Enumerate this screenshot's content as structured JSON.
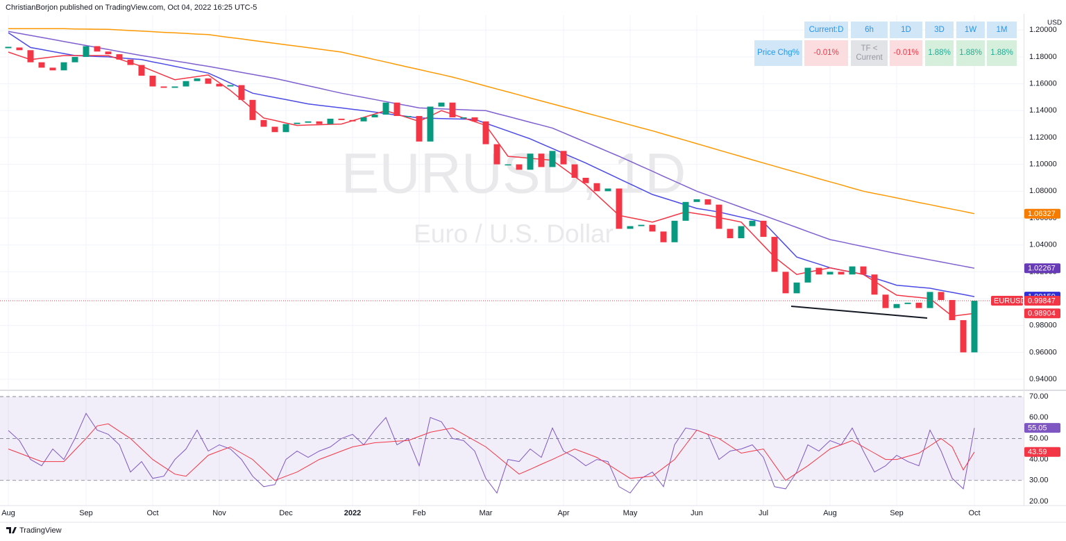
{
  "header": "ChristianBorjon published on TradingView.com, Oct 04, 2022 16:25 UTC-5",
  "footer": "TradingView",
  "table": {
    "header": [
      "Current:D",
      "6h",
      "1D",
      "3D",
      "1W",
      "1M"
    ],
    "row_label": "Price Chg%",
    "cells": [
      "-0.01%",
      "TF < Current",
      "-0.01%",
      "1.88%",
      "1.88%",
      "1.88%"
    ]
  },
  "chart_data": [
    {
      "type": "candlestick",
      "title": "EURUSD, 1D",
      "subtitle": "Euro / U.S. Dollar",
      "currency": "USD",
      "ylim": [
        0.9328,
        1.211
      ],
      "grid": true,
      "yticks": [
        {
          "value": 1.2,
          "label": "1.20000"
        },
        {
          "value": 1.18,
          "label": "1.18000"
        },
        {
          "value": 1.16,
          "label": "1.16000"
        },
        {
          "value": 1.14,
          "label": "1.14000"
        },
        {
          "value": 1.12,
          "label": "1.12000"
        },
        {
          "value": 1.1,
          "label": "1.10000"
        },
        {
          "value": 1.08,
          "label": "1.08000"
        },
        {
          "value": 1.06,
          "label": "1.06000"
        },
        {
          "value": 1.04,
          "label": "1.04000"
        },
        {
          "value": 1.02,
          "label": "1.02000"
        },
        {
          "value": 1.0,
          "label": "1.00000"
        },
        {
          "value": 0.98,
          "label": "0.98000"
        },
        {
          "value": 0.96,
          "label": "0.96000"
        },
        {
          "value": 0.94,
          "label": "0.94000"
        }
      ],
      "series": [
        {
          "name": "EURUSD",
          "up_color": "#089981",
          "down_color": "#f23645",
          "color": "#f23645",
          "values": [
            1.187,
            1.185,
            1.176,
            1.172,
            1.17,
            1.176,
            1.18,
            1.188,
            1.184,
            1.182,
            1.178,
            1.174,
            1.166,
            1.158,
            1.157,
            1.158,
            1.162,
            1.164,
            1.16,
            1.158,
            1.159,
            1.148,
            1.133,
            1.128,
            1.124,
            1.13,
            1.131,
            1.132,
            1.13,
            1.134,
            1.133,
            1.132,
            1.135,
            1.137,
            1.146,
            1.136,
            1.136,
            1.117,
            1.143,
            1.146,
            1.135,
            1.135,
            1.132,
            1.115,
            1.1,
            1.1,
            1.096,
            1.108,
            1.098,
            1.11,
            1.1,
            1.09,
            1.086,
            1.08,
            1.082,
            1.052,
            1.054,
            1.055,
            1.05,
            1.042,
            1.058,
            1.072,
            1.074,
            1.07,
            1.052,
            1.045,
            1.054,
            1.058,
            1.046,
            1.02,
            1.004,
            1.012,
            1.023,
            1.018,
            1.02,
            1.018,
            1.024,
            1.018,
            1.003,
            0.993,
            0.996,
            0.997,
            0.993,
            1.005,
            0.999,
            0.984,
            0.96,
            0.99847
          ]
        },
        {
          "color": "#ff9800",
          "badge_color": "#f57c00",
          "values": [
            1.201,
            1.201,
            1.201,
            1.201,
            1.201,
            1.201,
            1.2008,
            1.2007,
            1.2006,
            1.2005,
            1.2001,
            1.1996,
            1.1992,
            1.1988,
            1.1983,
            1.1979,
            1.1975,
            1.197,
            1.1966,
            1.1955,
            1.1944,
            1.1934,
            1.1923,
            1.1912,
            1.1901,
            1.189,
            1.188,
            1.1869,
            1.1858,
            1.1847,
            1.1836,
            1.1817,
            1.1799,
            1.178,
            1.1762,
            1.1743,
            1.1724,
            1.1706,
            1.1687,
            1.1669,
            1.165,
            1.1628,
            1.1606,
            1.1583,
            1.1561,
            1.1539,
            1.1517,
            1.1494,
            1.1472,
            1.145,
            1.1428,
            1.1406,
            1.1383,
            1.1361,
            1.1339,
            1.1317,
            1.1294,
            1.1272,
            1.125,
            1.1226,
            1.1202,
            1.1178,
            1.1154,
            1.113,
            1.1106,
            1.1082,
            1.1058,
            1.1034,
            1.101,
            1.0987,
            1.0963,
            1.094,
            1.0917,
            1.0893,
            1.087,
            1.0847,
            1.0823,
            1.08,
            1.0783,
            1.0767,
            1.075,
            1.0733,
            1.0716,
            1.07,
            1.0683,
            1.0666,
            1.065,
            1.06327
          ]
        },
        {
          "color": "#7e5fd0",
          "badge_color": "#673ab7",
          "values": [
            1.199,
            1.1975,
            1.196,
            1.1945,
            1.193,
            1.1915,
            1.19,
            1.1885,
            1.187,
            1.1855,
            1.184,
            1.1825,
            1.181,
            1.1797,
            1.1783,
            1.177,
            1.1757,
            1.1743,
            1.173,
            1.1715,
            1.17,
            1.1685,
            1.167,
            1.1655,
            1.164,
            1.1622,
            1.1603,
            1.1585,
            1.1567,
            1.1548,
            1.153,
            1.1514,
            1.1499,
            1.1483,
            1.1467,
            1.1451,
            1.1436,
            1.142,
            1.1417,
            1.1413,
            1.141,
            1.1407,
            1.1403,
            1.14,
            1.1378,
            1.1357,
            1.1335,
            1.1313,
            1.1292,
            1.127,
            1.1235,
            1.12,
            1.1165,
            1.113,
            1.1095,
            1.106,
            1.1023,
            1.0986,
            1.0949,
            1.0911,
            1.0874,
            1.0837,
            1.08,
            1.077,
            1.074,
            1.071,
            1.068,
            1.065,
            1.062,
            1.059,
            1.056,
            1.053,
            1.05,
            1.047,
            1.044,
            1.0423,
            1.0405,
            1.0388,
            1.0371,
            1.0353,
            1.0336,
            1.032,
            1.0305,
            1.0289,
            1.0274,
            1.0258,
            1.0242,
            1.02267
          ]
        },
        {
          "color": "#4a4ae6",
          "badge_color": "#2f2fd6",
          "last_label": "1.00150",
          "values": [
            1.198,
            1.1925,
            1.187,
            1.1855,
            1.184,
            1.1825,
            1.181,
            1.1807,
            1.1803,
            1.18,
            1.1793,
            1.1787,
            1.178,
            1.1763,
            1.1747,
            1.173,
            1.1713,
            1.1697,
            1.168,
            1.1643,
            1.1605,
            1.1568,
            1.153,
            1.1514,
            1.1498,
            1.1482,
            1.1466,
            1.145,
            1.144,
            1.143,
            1.142,
            1.141,
            1.14,
            1.1389,
            1.1378,
            1.1367,
            1.1356,
            1.1345,
            1.1343,
            1.1341,
            1.1339,
            1.1337,
            1.1335,
            1.1306,
            1.1277,
            1.1248,
            1.1219,
            1.119,
            1.1154,
            1.1118,
            1.1082,
            1.1046,
            1.101,
            1.0971,
            1.0932,
            1.0893,
            1.0854,
            1.0815,
            1.0776,
            1.075,
            1.0724,
            1.0698,
            1.0672,
            1.0659,
            1.0645,
            1.0626,
            1.0607,
            1.0589,
            1.057,
            1.0483,
            1.0397,
            1.031,
            1.0283,
            1.0257,
            1.023,
            1.0213,
            1.0197,
            1.018,
            1.0153,
            1.0127,
            1.01,
            1.0093,
            1.0085,
            1.0078,
            1.0062,
            1.0047,
            1.0031,
            1.0015
          ]
        },
        {
          "color": "#f23645",
          "badge_color": "#f23645",
          "values": [
            1.1836,
            1.1808,
            1.178,
            1.179,
            1.18,
            1.181,
            1.181,
            1.181,
            1.181,
            1.181,
            1.1783,
            1.1757,
            1.173,
            1.1697,
            1.1663,
            1.163,
            1.1642,
            1.1654,
            1.1666,
            1.1608,
            1.155,
            1.1482,
            1.1413,
            1.1345,
            1.1327,
            1.1308,
            1.129,
            1.1293,
            1.1295,
            1.1298,
            1.13,
            1.1325,
            1.135,
            1.1375,
            1.14,
            1.1373,
            1.1347,
            1.132,
            1.136,
            1.14,
            1.1373,
            1.1345,
            1.1318,
            1.129,
            1.1175,
            1.106,
            1.1053,
            1.1045,
            1.1038,
            1.103,
            1.097,
            1.091,
            1.085,
            1.0773,
            1.0697,
            1.062,
            1.0603,
            1.0587,
            1.057,
            1.0595,
            1.0621,
            1.0646,
            1.0633,
            1.062,
            1.0603,
            1.0587,
            1.057,
            1.0483,
            1.0397,
            1.031,
            1.0245,
            1.018,
            1.0197,
            1.0213,
            1.023,
            1.0213,
            1.0197,
            1.018,
            1.0129,
            1.0077,
            1.0026,
            1.0017,
            1.0009,
            1.0,
            0.9935,
            0.987,
            0.988,
            0.98904
          ]
        }
      ]
    },
    {
      "type": "line",
      "ylim": [
        18,
        73
      ],
      "grid": true,
      "band": [
        30,
        70
      ],
      "levels": [
        70,
        50,
        30
      ],
      "band_color": "#7e57c2",
      "yticks": [
        {
          "value": 70,
          "label": "70.00"
        },
        {
          "value": 60,
          "label": "60.00"
        },
        {
          "value": 50,
          "label": "50.00"
        },
        {
          "value": 40,
          "label": "40.00"
        },
        {
          "value": 30,
          "label": "30.00"
        },
        {
          "value": 20,
          "label": "20.00"
        }
      ],
      "categories": [
        "Aug",
        null,
        null,
        null,
        null,
        null,
        null,
        "Sep",
        null,
        null,
        null,
        null,
        null,
        "Oct",
        null,
        null,
        null,
        null,
        null,
        "Nov",
        null,
        null,
        null,
        null,
        null,
        "Dec",
        null,
        null,
        null,
        null,
        null,
        "2022",
        null,
        null,
        null,
        null,
        null,
        "Feb",
        null,
        null,
        null,
        null,
        null,
        "Mar",
        null,
        null,
        null,
        null,
        null,
        null,
        "Apr",
        null,
        null,
        null,
        null,
        null,
        "May",
        null,
        null,
        null,
        null,
        null,
        "Jun",
        null,
        null,
        null,
        null,
        null,
        "Jul",
        null,
        null,
        null,
        null,
        null,
        "Aug",
        null,
        null,
        null,
        null,
        null,
        "Sep",
        null,
        null,
        null,
        null,
        null,
        null,
        "Oct"
      ],
      "series": [
        {
          "color": "#7e57c2",
          "values": [
            53.8,
            49,
            40,
            37,
            45,
            40,
            50,
            62,
            54,
            52,
            47,
            34,
            39,
            31,
            32,
            40,
            45,
            54,
            44,
            47,
            45,
            40,
            32,
            27,
            28,
            40,
            44,
            41,
            44,
            46,
            50,
            52,
            47,
            54,
            60,
            47,
            50,
            37,
            60,
            58,
            50,
            49,
            44,
            31,
            24,
            40,
            39,
            45,
            41,
            55,
            44,
            41,
            37,
            40,
            39,
            27,
            24,
            31,
            34,
            27,
            47,
            55,
            54,
            52,
            40,
            44,
            45,
            47,
            41,
            27,
            26,
            34,
            47,
            44,
            49,
            47,
            55,
            44,
            34,
            37,
            42,
            39,
            37,
            54,
            44,
            31,
            26,
            55.05
          ]
        },
        {
          "color": "#f23645",
          "values": [
            45,
            43,
            41,
            39,
            39,
            39,
            44.5,
            50,
            56,
            57,
            53.5,
            50,
            45,
            40,
            36.5,
            33,
            32,
            37,
            42,
            44,
            46,
            43,
            40,
            35,
            30,
            32,
            34,
            37,
            40,
            42,
            44,
            46,
            47,
            48,
            48.3,
            48.7,
            49,
            51,
            53,
            54,
            55,
            52,
            49,
            46,
            41.7,
            37.3,
            33,
            35.3,
            37.7,
            40,
            42.5,
            45,
            43,
            41,
            37.7,
            34.3,
            31,
            31.5,
            32,
            36,
            40,
            47,
            54,
            52,
            50,
            46.5,
            43,
            44,
            45,
            37.5,
            30,
            33.5,
            37,
            41,
            45,
            47,
            49,
            46,
            43,
            40,
            40,
            41.5,
            43,
            46.5,
            50,
            46,
            35,
            43.59
          ]
        }
      ]
    }
  ]
}
